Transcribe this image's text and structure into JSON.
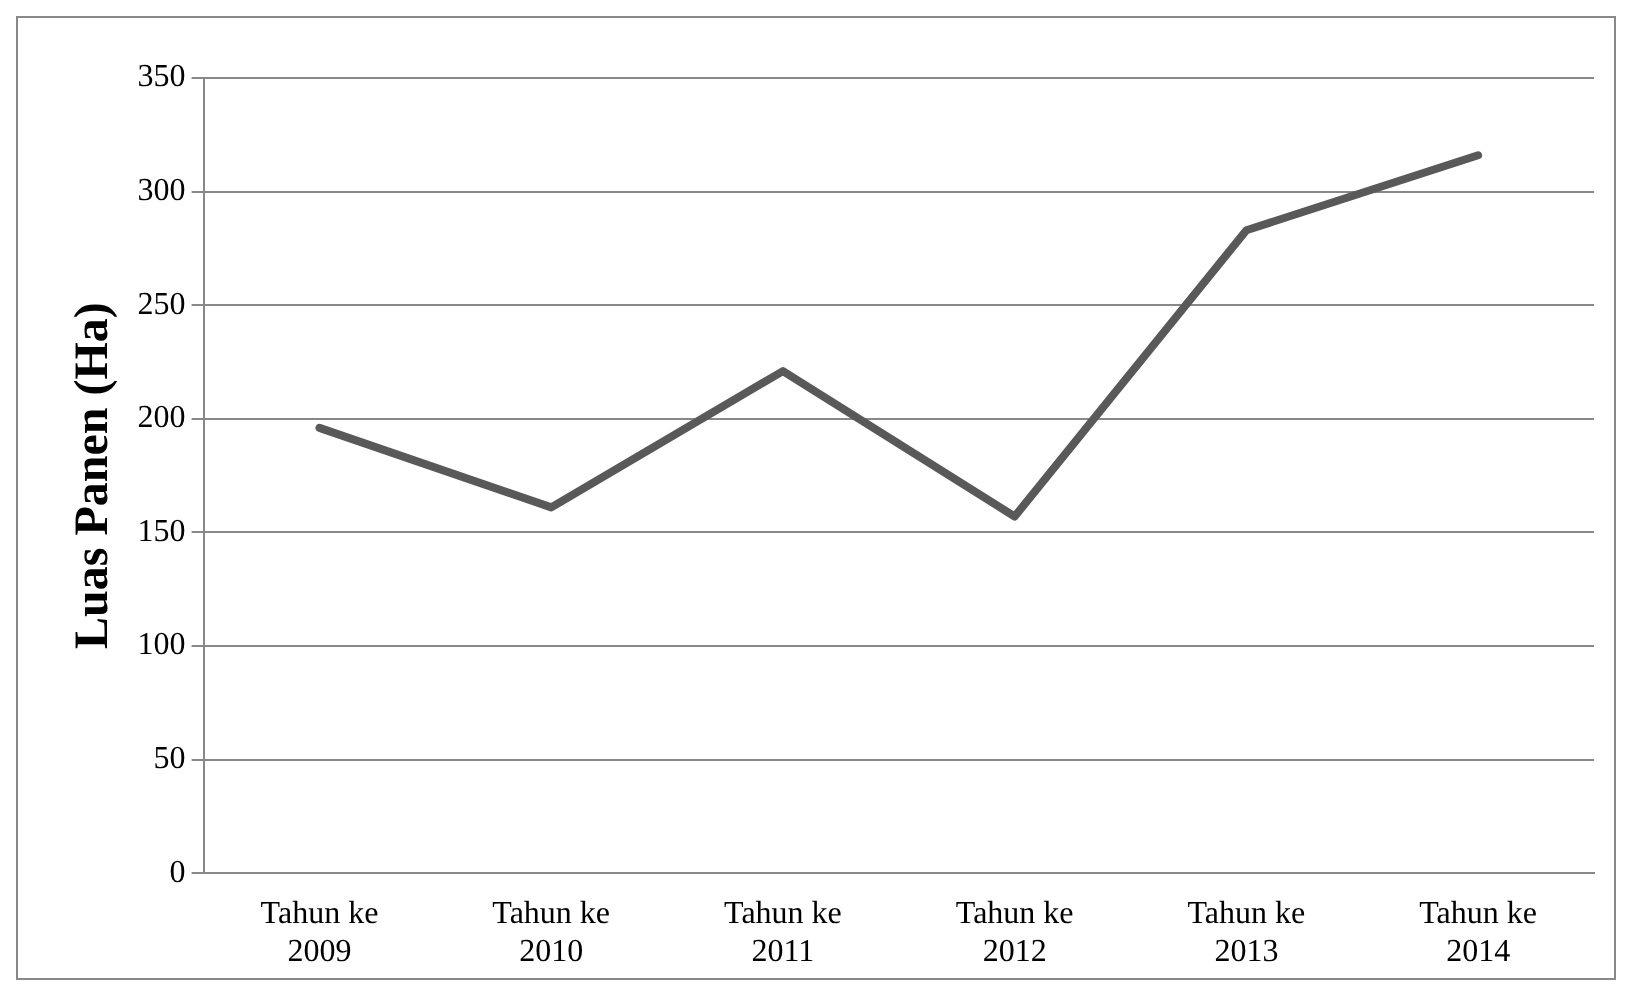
{
  "chart_data": {
    "type": "line",
    "ylabel": "Luas Panen (Ha)",
    "categories": [
      "Tahun ke 2009",
      "Tahun ke 2010",
      "Tahun ke 2011",
      "Tahun ke 2012",
      "Tahun ke 2013",
      "Tahun ke 2014"
    ],
    "series": [
      {
        "color": "#595959",
        "values": [
          196,
          161,
          221,
          157,
          283,
          316
        ]
      }
    ],
    "ylim": [
      0,
      350
    ],
    "yticks": [
      0,
      50,
      100,
      150,
      200,
      250,
      300,
      350
    ],
    "grid": "y",
    "legend": false,
    "marker": "none",
    "line_style": "solid"
  }
}
